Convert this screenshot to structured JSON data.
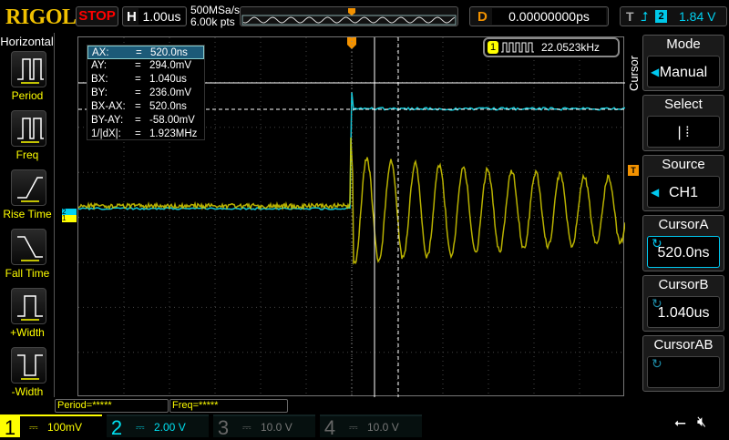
{
  "header": {
    "logo": "RIGOL",
    "run_state": "STOP",
    "horizontal_key": "H",
    "timebase": "1.00us",
    "sample_rate": "500MSa/s",
    "memory_depth": "6.00k pts",
    "delay_key": "D",
    "delay": "0.00000000ps",
    "trigger_key": "T",
    "trigger_source": "2",
    "trigger_level": "1.84 V",
    "trigger_marker": "T"
  },
  "left_menu": {
    "title": "Horizontal",
    "items": [
      {
        "label": "Period"
      },
      {
        "label": "Freq"
      },
      {
        "label": "Rise Time"
      },
      {
        "label": "Fall Time"
      },
      {
        "label": "+Width"
      },
      {
        "label": "-Width"
      }
    ]
  },
  "cursor_readout": {
    "rows": [
      {
        "k": "AX:",
        "v": "520.0ns"
      },
      {
        "k": "AY:",
        "v": "294.0mV"
      },
      {
        "k": "BX:",
        "v": "1.040us"
      },
      {
        "k": "BY:",
        "v": "236.0mV"
      },
      {
        "k": "BX-AX:",
        "v": "520.0ns"
      },
      {
        "k": "BY-AY:",
        "v": "-58.00mV"
      },
      {
        "k": "1/|dX|:",
        "v": "1.923MHz"
      }
    ],
    "eq": "="
  },
  "freq_counter": {
    "channel": "1",
    "value": "22.0523kHz"
  },
  "right_menu": {
    "title": "Cursor",
    "items": [
      {
        "header": "Mode",
        "value": "Manual"
      },
      {
        "header": "Select",
        "value": "| ⁞"
      },
      {
        "header": "Source",
        "value": "CH1"
      },
      {
        "header": "CursorA",
        "value": "520.0ns"
      },
      {
        "header": "CursorB",
        "value": "1.040us"
      },
      {
        "header": "CursorAB",
        "value": ""
      }
    ]
  },
  "measurements": [
    {
      "label": "Period=*****"
    },
    {
      "label": "Freq=*****"
    }
  ],
  "channels": [
    {
      "num": "1",
      "scale": "100mV",
      "color": "#ffff00"
    },
    {
      "num": "2",
      "scale": "2.00 V",
      "color": "#00e0f0"
    },
    {
      "num": "3",
      "scale": "10.0 V",
      "color": "#c020c0"
    },
    {
      "num": "4",
      "scale": "10.0 V",
      "color": "#2060c0"
    }
  ],
  "markers": {
    "ch1": "1",
    "ch2": "2",
    "trigger_level": "T"
  }
}
